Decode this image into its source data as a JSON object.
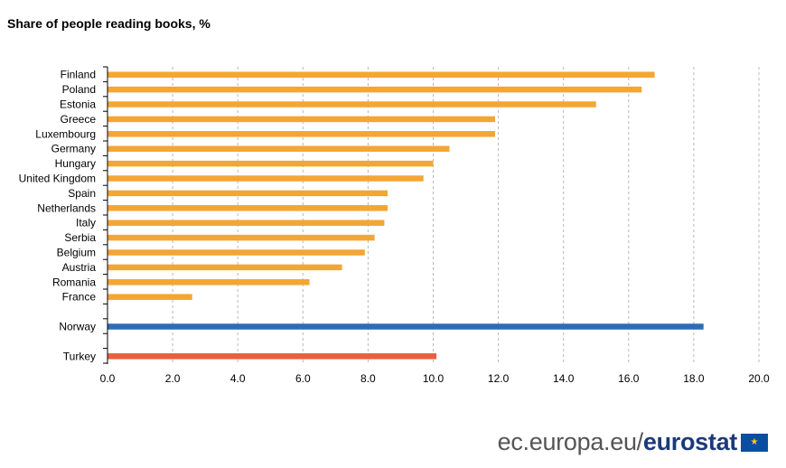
{
  "chart_data": {
    "type": "bar",
    "orientation": "horizontal",
    "title": "Share of people reading books, %",
    "xlabel": "",
    "ylabel": "",
    "xlim": [
      0,
      20
    ],
    "xticks": [
      "0.0",
      "2.0",
      "4.0",
      "6.0",
      "8.0",
      "10.0",
      "12.0",
      "14.0",
      "16.0",
      "18.0",
      "20.0"
    ],
    "grid": "vertical dashed",
    "groups": [
      {
        "color": "#f5a532",
        "categories": [
          "Finland",
          "Poland",
          "Estonia",
          "Greece",
          "Luxembourg",
          "Germany",
          "Hungary",
          "United Kingdom",
          "Spain",
          "Netherlands",
          "Italy",
          "Serbia",
          "Belgium",
          "Austria",
          "Romania",
          "France"
        ],
        "values": [
          16.8,
          16.4,
          15.0,
          11.9,
          11.9,
          10.5,
          10.0,
          9.7,
          8.6,
          8.6,
          8.5,
          8.2,
          7.9,
          7.2,
          6.2,
          2.6
        ]
      },
      {
        "color": "#2e6db4",
        "categories": [
          "Norway"
        ],
        "values": [
          18.3
        ]
      },
      {
        "color": "#e8603c",
        "categories": [
          "Turkey"
        ],
        "values": [
          10.1
        ]
      }
    ]
  },
  "footer": {
    "site": "ec.europa.eu/",
    "brand": "eurostat",
    "flag_stars": "★"
  }
}
